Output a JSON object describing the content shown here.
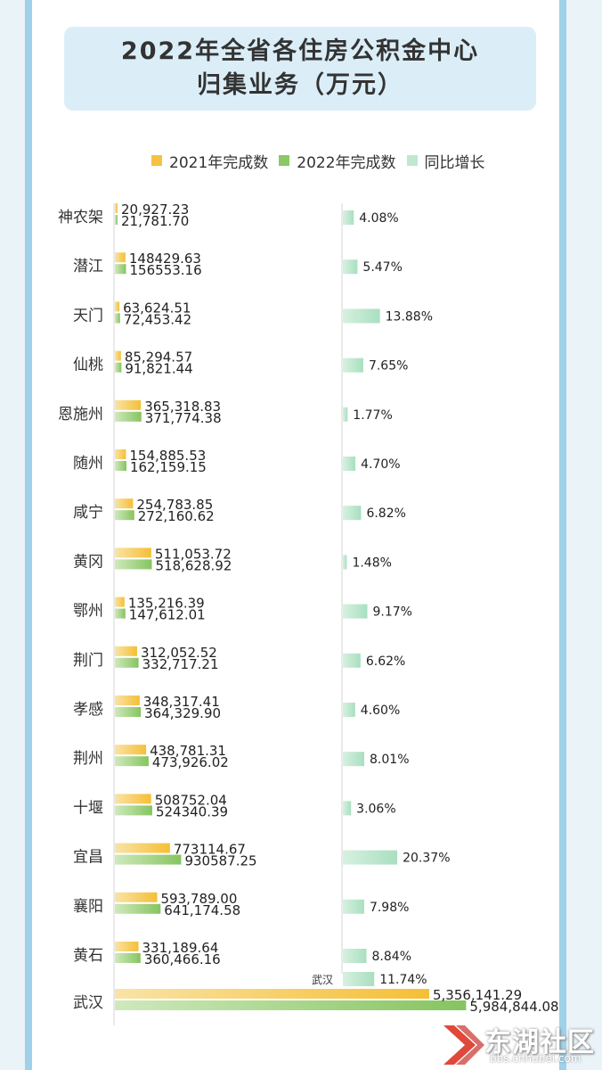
{
  "chart_data": {
    "type": "bar",
    "title": [
      "2022年全省各住房公积金中心",
      "归集业务（万元）"
    ],
    "legend": [
      "2021年完成数",
      "2022年完成数",
      "同比增长"
    ],
    "colors": {
      "y2021": "#f5c242",
      "y2022": "#8cc866",
      "growth": "#bfe8cf"
    },
    "categories": [
      "神农架",
      "潜江",
      "天门",
      "仙桃",
      "恩施州",
      "随州",
      "咸宁",
      "黄冈",
      "鄂州",
      "荆门",
      "孝感",
      "荆州",
      "十堰",
      "宜昌",
      "襄阳",
      "黄石",
      "武汉"
    ],
    "series": [
      {
        "name": "2021年完成数",
        "values": [
          20927.23,
          148429.63,
          63624.51,
          85294.57,
          365318.83,
          154885.53,
          254783.85,
          511053.72,
          135216.39,
          312052.52,
          348317.41,
          438781.31,
          508752.04,
          773114.67,
          593789.0,
          331189.64,
          5356141.29
        ],
        "labels": [
          "20,927.23",
          "148429.63",
          "63,624.51",
          "85,294.57",
          "365,318.83",
          "154,885.53",
          "254,783.85",
          "511,053.72",
          "135,216.39",
          "312,052.52",
          "348,317.41",
          "438,781.31",
          "508752.04",
          "773114.67",
          "593,789.00",
          "331,189.64",
          "5,356,141.29"
        ]
      },
      {
        "name": "2022年完成数",
        "values": [
          21781.7,
          156553.16,
          72453.42,
          91821.44,
          371774.38,
          162159.15,
          272160.62,
          518628.92,
          147612.01,
          332717.21,
          364329.9,
          473926.02,
          524340.39,
          930587.25,
          641174.58,
          360466.16,
          5984844.08
        ],
        "labels": [
          "21,781.70",
          "156553.16",
          "72,453.42",
          "91,821.44",
          "371,774.38",
          "162,159.15",
          "272,160.62",
          "518,628.92",
          "147,612.01",
          "332,717.21",
          "364,329.90",
          "473,926.02",
          "524340.39",
          "930587.25",
          "641,174.58",
          "360,466.16",
          "5,984,844.08"
        ]
      },
      {
        "name": "同比增长",
        "values": [
          4.08,
          5.47,
          13.88,
          7.65,
          1.77,
          4.7,
          6.82,
          1.48,
          9.17,
          6.62,
          4.6,
          8.01,
          3.06,
          20.37,
          7.98,
          8.84,
          11.74
        ],
        "labels": [
          "4.08%",
          "5.47%",
          "13.88%",
          "7.65%",
          "1.77%",
          "4.70%",
          "6.82%",
          "1.48%",
          "9.17%",
          "6.62%",
          "4.60%",
          "8.01%",
          "3.06%",
          "20.37%",
          "7.98%",
          "8.84%",
          "11.74%"
        ]
      }
    ],
    "growth_annotation": "武汉"
  },
  "watermark": {
    "text": "东湖社区",
    "url": "bbs.cnhubei.com"
  }
}
